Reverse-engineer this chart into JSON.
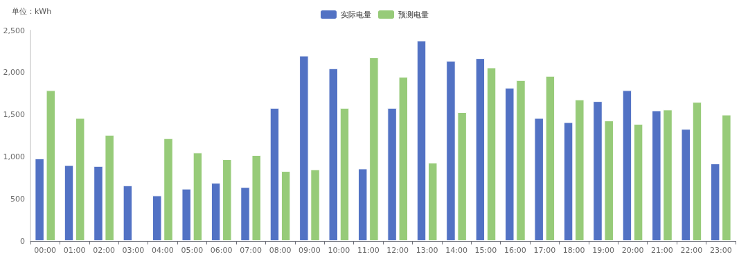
{
  "chart_data": {
    "type": "bar",
    "ylabel": "单位：kWh",
    "categories": [
      "00:00",
      "01:00",
      "02:00",
      "03:00",
      "04:00",
      "05:00",
      "06:00",
      "07:00",
      "08:00",
      "09:00",
      "10:00",
      "11:00",
      "12:00",
      "13:00",
      "14:00",
      "15:00",
      "16:00",
      "17:00",
      "18:00",
      "19:00",
      "20:00",
      "21:00",
      "22:00",
      "23:00"
    ],
    "series": [
      {
        "name": "实际电量",
        "color": "#5272c4",
        "values": [
          980,
          900,
          890,
          660,
          540,
          620,
          690,
          640,
          1580,
          2200,
          2050,
          860,
          1580,
          2380,
          2140,
          2170,
          1820,
          1460,
          1410,
          1660,
          1790,
          1550,
          1330,
          920
        ]
      },
      {
        "name": "预测电量",
        "color": "#97cb79",
        "values": [
          1790,
          1460,
          1260,
          null,
          1220,
          1050,
          970,
          1020,
          830,
          850,
          1580,
          2180,
          1950,
          930,
          1530,
          2060,
          1910,
          1960,
          1680,
          1430,
          1390,
          1560,
          1650,
          1500
        ]
      }
    ],
    "ylim": [
      0,
      2500
    ],
    "yticks": [
      0,
      500,
      {
        "value": 1000,
        "label": "1,000"
      },
      {
        "value": 1500,
        "label": "1,500"
      },
      {
        "value": 2000,
        "label": "2,000"
      },
      {
        "value": 2500,
        "label": "2,500"
      }
    ],
    "grid": false,
    "legend": "top"
  }
}
